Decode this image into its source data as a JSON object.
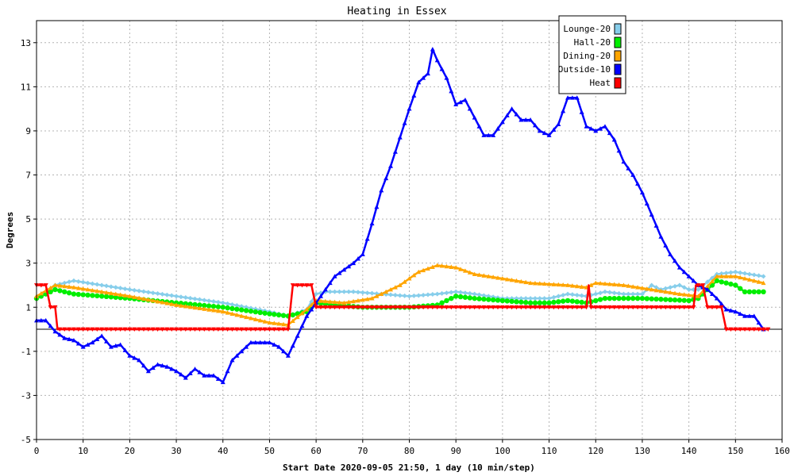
{
  "chart_data": {
    "type": "line",
    "title": "Heating in Essex",
    "xlabel": "Start Date 2020-09-05 21:50, 1 day (10 min/step)",
    "ylabel": "Degrees",
    "xlim": [
      0,
      160
    ],
    "ylim": [
      -5,
      14
    ],
    "x_ticks": [
      0,
      10,
      20,
      30,
      40,
      50,
      60,
      70,
      80,
      90,
      100,
      110,
      120,
      130,
      140,
      150,
      160
    ],
    "y_ticks": [
      -5,
      -3,
      -1,
      1,
      3,
      5,
      7,
      9,
      11,
      13
    ],
    "grid": true,
    "legend_position": "top-right",
    "series": [
      {
        "name": "Lounge-20",
        "color": "#87ceeb",
        "marker": "diamond",
        "points": [
          [
            0,
            1.4
          ],
          [
            4,
            2.0
          ],
          [
            8,
            2.2
          ],
          [
            14,
            2.0
          ],
          [
            20,
            1.8
          ],
          [
            30,
            1.5
          ],
          [
            40,
            1.2
          ],
          [
            50,
            0.8
          ],
          [
            54,
            0.6
          ],
          [
            58,
            0.9
          ],
          [
            60,
            1.6
          ],
          [
            62,
            1.7
          ],
          [
            68,
            1.7
          ],
          [
            74,
            1.6
          ],
          [
            80,
            1.5
          ],
          [
            86,
            1.6
          ],
          [
            90,
            1.7
          ],
          [
            94,
            1.6
          ],
          [
            100,
            1.4
          ],
          [
            106,
            1.4
          ],
          [
            110,
            1.4
          ],
          [
            114,
            1.6
          ],
          [
            118,
            1.5
          ],
          [
            122,
            1.7
          ],
          [
            126,
            1.6
          ],
          [
            130,
            1.6
          ],
          [
            132,
            2.0
          ],
          [
            134,
            1.8
          ],
          [
            138,
            2.0
          ],
          [
            140,
            1.8
          ],
          [
            142,
            1.8
          ],
          [
            146,
            2.5
          ],
          [
            150,
            2.6
          ],
          [
            156,
            2.4
          ]
        ]
      },
      {
        "name": "Hall-20",
        "color": "#00ee00",
        "marker": "circle",
        "points": [
          [
            0,
            1.4
          ],
          [
            4,
            1.8
          ],
          [
            8,
            1.6
          ],
          [
            14,
            1.5
          ],
          [
            20,
            1.4
          ],
          [
            30,
            1.2
          ],
          [
            40,
            1.0
          ],
          [
            50,
            0.7
          ],
          [
            54,
            0.6
          ],
          [
            58,
            0.8
          ],
          [
            60,
            1.2
          ],
          [
            64,
            1.1
          ],
          [
            70,
            1.0
          ],
          [
            80,
            1.0
          ],
          [
            86,
            1.1
          ],
          [
            90,
            1.5
          ],
          [
            94,
            1.4
          ],
          [
            100,
            1.3
          ],
          [
            106,
            1.2
          ],
          [
            110,
            1.2
          ],
          [
            114,
            1.3
          ],
          [
            118,
            1.2
          ],
          [
            122,
            1.4
          ],
          [
            130,
            1.4
          ],
          [
            140,
            1.3
          ],
          [
            142,
            1.4
          ],
          [
            146,
            2.2
          ],
          [
            150,
            2.0
          ],
          [
            152,
            1.7
          ],
          [
            156,
            1.7
          ]
        ]
      },
      {
        "name": "Dining-20",
        "color": "#ffa500",
        "marker": "triangle",
        "points": [
          [
            0,
            1.5
          ],
          [
            4,
            2.0
          ],
          [
            8,
            1.9
          ],
          [
            14,
            1.7
          ],
          [
            20,
            1.5
          ],
          [
            30,
            1.1
          ],
          [
            40,
            0.8
          ],
          [
            50,
            0.3
          ],
          [
            54,
            0.2
          ],
          [
            58,
            0.9
          ],
          [
            60,
            1.3
          ],
          [
            66,
            1.2
          ],
          [
            72,
            1.4
          ],
          [
            78,
            2.0
          ],
          [
            82,
            2.6
          ],
          [
            86,
            2.9
          ],
          [
            90,
            2.8
          ],
          [
            94,
            2.5
          ],
          [
            100,
            2.3
          ],
          [
            106,
            2.1
          ],
          [
            114,
            2.0
          ],
          [
            118,
            1.9
          ],
          [
            120,
            2.1
          ],
          [
            126,
            2.0
          ],
          [
            132,
            1.8
          ],
          [
            138,
            1.6
          ],
          [
            142,
            1.5
          ],
          [
            146,
            2.4
          ],
          [
            150,
            2.4
          ],
          [
            156,
            2.1
          ]
        ]
      },
      {
        "name": "Outside-10",
        "color": "#0000ff",
        "marker": "triangle",
        "points": [
          [
            0,
            0.4
          ],
          [
            2,
            0.4
          ],
          [
            4,
            -0.1
          ],
          [
            6,
            -0.4
          ],
          [
            8,
            -0.5
          ],
          [
            10,
            -0.8
          ],
          [
            12,
            -0.6
          ],
          [
            14,
            -0.3
          ],
          [
            16,
            -0.8
          ],
          [
            18,
            -0.7
          ],
          [
            20,
            -1.2
          ],
          [
            22,
            -1.4
          ],
          [
            24,
            -1.9
          ],
          [
            26,
            -1.6
          ],
          [
            28,
            -1.7
          ],
          [
            30,
            -1.9
          ],
          [
            32,
            -2.2
          ],
          [
            34,
            -1.8
          ],
          [
            36,
            -2.1
          ],
          [
            38,
            -2.1
          ],
          [
            40,
            -2.4
          ],
          [
            42,
            -1.4
          ],
          [
            44,
            -1.0
          ],
          [
            46,
            -0.6
          ],
          [
            48,
            -0.6
          ],
          [
            50,
            -0.6
          ],
          [
            52,
            -0.8
          ],
          [
            54,
            -1.2
          ],
          [
            56,
            -0.3
          ],
          [
            58,
            0.6
          ],
          [
            60,
            1.2
          ],
          [
            62,
            1.8
          ],
          [
            64,
            2.4
          ],
          [
            66,
            2.7
          ],
          [
            68,
            3.0
          ],
          [
            70,
            3.4
          ],
          [
            72,
            4.8
          ],
          [
            74,
            6.3
          ],
          [
            76,
            7.4
          ],
          [
            78,
            8.7
          ],
          [
            80,
            10.0
          ],
          [
            82,
            11.2
          ],
          [
            84,
            11.6
          ],
          [
            85,
            12.7
          ],
          [
            86,
            12.2
          ],
          [
            88,
            11.4
          ],
          [
            90,
            10.2
          ],
          [
            92,
            10.4
          ],
          [
            94,
            9.6
          ],
          [
            96,
            8.8
          ],
          [
            98,
            8.8
          ],
          [
            100,
            9.4
          ],
          [
            102,
            10.0
          ],
          [
            104,
            9.5
          ],
          [
            106,
            9.5
          ],
          [
            108,
            9.0
          ],
          [
            110,
            8.8
          ],
          [
            112,
            9.3
          ],
          [
            114,
            10.5
          ],
          [
            116,
            10.5
          ],
          [
            118,
            9.2
          ],
          [
            120,
            9.0
          ],
          [
            122,
            9.2
          ],
          [
            124,
            8.6
          ],
          [
            126,
            7.6
          ],
          [
            128,
            7.0
          ],
          [
            130,
            6.2
          ],
          [
            132,
            5.2
          ],
          [
            134,
            4.2
          ],
          [
            136,
            3.4
          ],
          [
            138,
            2.8
          ],
          [
            140,
            2.4
          ],
          [
            142,
            2.0
          ],
          [
            144,
            1.8
          ],
          [
            146,
            1.4
          ],
          [
            148,
            0.9
          ],
          [
            150,
            0.8
          ],
          [
            152,
            0.6
          ],
          [
            154,
            0.6
          ],
          [
            156,
            0.0
          ]
        ]
      },
      {
        "name": "Heat",
        "color": "#ff0000",
        "marker": "triangle-down",
        "points": [
          [
            0,
            2
          ],
          [
            2,
            2
          ],
          [
            3,
            1
          ],
          [
            4,
            1
          ],
          [
            4.5,
            0
          ],
          [
            54,
            0
          ],
          [
            55,
            2
          ],
          [
            59,
            2
          ],
          [
            60,
            1
          ],
          [
            118,
            1
          ],
          [
            118.5,
            2
          ],
          [
            119,
            1
          ],
          [
            141,
            1
          ],
          [
            141.5,
            2
          ],
          [
            143,
            2
          ],
          [
            144,
            1
          ],
          [
            147,
            1
          ],
          [
            148,
            0
          ],
          [
            157,
            0
          ]
        ]
      }
    ]
  }
}
